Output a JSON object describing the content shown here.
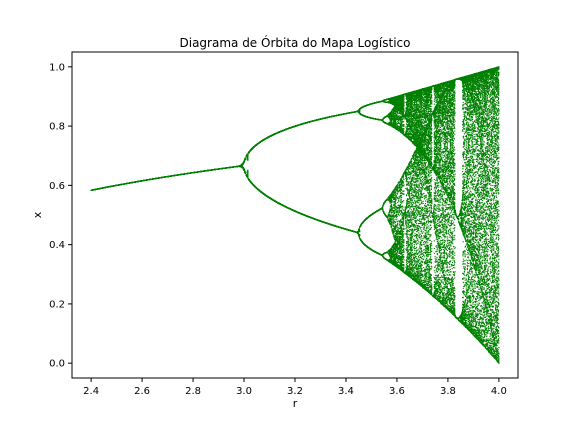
{
  "chart_data": {
    "type": "scatter",
    "title": "Diagrama de Órbita do Mapa Logístico",
    "xlabel": "r",
    "ylabel": "x",
    "xlim": [
      2.325,
      4.075
    ],
    "ylim": [
      -0.05,
      1.05
    ],
    "xticks": [
      2.4,
      2.6,
      2.8,
      3.0,
      3.2,
      3.4,
      3.6,
      3.8,
      4.0
    ],
    "xtick_labels": [
      "2.4",
      "2.6",
      "2.8",
      "3.0",
      "3.2",
      "3.4",
      "3.6",
      "3.8",
      "4.0"
    ],
    "yticks": [
      0.0,
      0.2,
      0.4,
      0.6,
      0.8,
      1.0
    ],
    "ytick_labels": [
      "0.0",
      "0.2",
      "0.4",
      "0.6",
      "0.8",
      "1.0"
    ],
    "grid": false,
    "series": [
      {
        "generator": "logistic_map x_{n+1} = r * x_n * (1 - x_n)",
        "r_range": [
          2.4,
          4.0
        ],
        "color": "#008000",
        "sample_points": [
          {
            "r": 2.4,
            "x": 0.583
          },
          {
            "r": 2.6,
            "x": 0.615
          },
          {
            "r": 2.8,
            "x": 0.643
          },
          {
            "r": 3.0,
            "x": 0.667
          },
          {
            "r": 3.2,
            "x": 0.513
          },
          {
            "r": 3.2,
            "x": 0.799
          },
          {
            "r": 3.4,
            "x": 0.452
          },
          {
            "r": 3.4,
            "x": 0.842
          },
          {
            "r": 3.5,
            "x": 0.383
          },
          {
            "r": 3.5,
            "x": 0.501
          },
          {
            "r": 3.5,
            "x": 0.827
          },
          {
            "r": 3.5,
            "x": 0.875
          },
          {
            "r": 4.0,
            "x": 0.0
          },
          {
            "r": 4.0,
            "x": 1.0
          }
        ]
      }
    ]
  }
}
